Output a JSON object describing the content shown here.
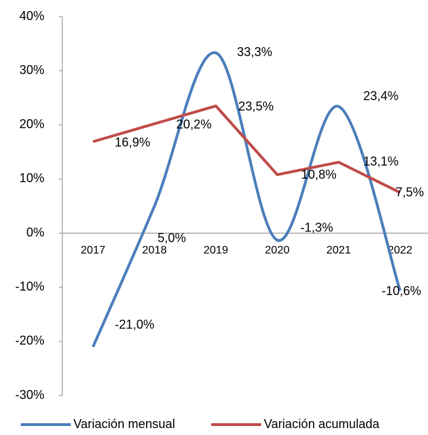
{
  "chart_data": {
    "type": "line",
    "categories": [
      "2017",
      "2018",
      "2019",
      "2020",
      "2021",
      "2022"
    ],
    "series": [
      {
        "name": "Variación mensual",
        "color": "#4a7ebb",
        "smooth": true,
        "values": [
          -21.0,
          5.0,
          33.3,
          -1.3,
          23.4,
          -10.6
        ],
        "value_labels": [
          "-21,0%",
          "5,0%",
          "33,3%",
          "-1,3%",
          "23,4%",
          "-10,6%"
        ]
      },
      {
        "name": "Variación acumulada",
        "color": "#be4b48",
        "smooth": false,
        "values": [
          16.9,
          20.2,
          23.5,
          10.8,
          13.1,
          7.5
        ],
        "value_labels": [
          "16,9%",
          "20,2%",
          "23,5%",
          "10,8%",
          "13,1%",
          "7,5%"
        ]
      }
    ],
    "ylim": [
      -30,
      40
    ],
    "yticks": [
      {
        "value": -30,
        "label": "-30%"
      },
      {
        "value": -20,
        "label": "-20%"
      },
      {
        "value": -10,
        "label": "-10%"
      },
      {
        "value": 0,
        "label": "0%"
      },
      {
        "value": 10,
        "label": "10%"
      },
      {
        "value": 20,
        "label": "20%"
      },
      {
        "value": 30,
        "label": "30%"
      },
      {
        "value": 40,
        "label": "40%"
      }
    ],
    "grid": false,
    "legend": "bottom"
  }
}
